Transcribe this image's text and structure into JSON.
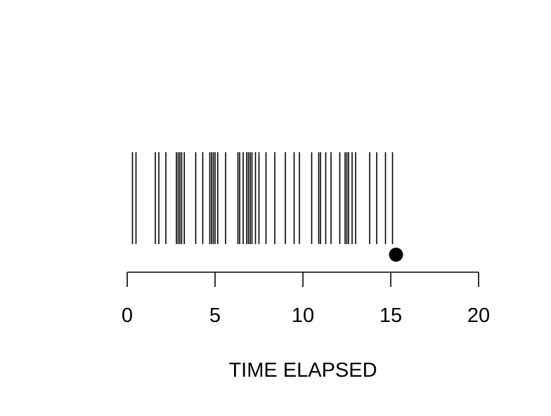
{
  "chart_data": {
    "type": "event_plot",
    "title": "",
    "xlabel": "TIME ELAPSED",
    "ylabel": "",
    "xlim": [
      0,
      20
    ],
    "x_ticks": [
      0,
      5,
      10,
      15,
      20
    ],
    "x_tick_labels": [
      "0",
      "5",
      "10",
      "15",
      "20"
    ],
    "grid": false,
    "legend": "none",
    "events": [
      0.3,
      0.5,
      1.6,
      1.8,
      2.2,
      2.8,
      2.9,
      3.0,
      3.1,
      3.25,
      3.9,
      4.3,
      4.7,
      4.8,
      4.9,
      5.0,
      5.15,
      5.6,
      6.3,
      6.4,
      6.6,
      6.8,
      6.9,
      7.0,
      7.1,
      7.3,
      7.5,
      7.9,
      8.4,
      9.0,
      9.5,
      9.8,
      10.5,
      10.9,
      11.0,
      11.3,
      11.6,
      12.1,
      12.4,
      12.5,
      12.6,
      12.8,
      13.0,
      13.8,
      14.2,
      14.7,
      15.1
    ],
    "marker": {
      "x": 15.3,
      "shape": "filled-circle"
    },
    "colors": {
      "event_line": "#000000",
      "marker": "#000000",
      "axis": "#000000"
    }
  }
}
